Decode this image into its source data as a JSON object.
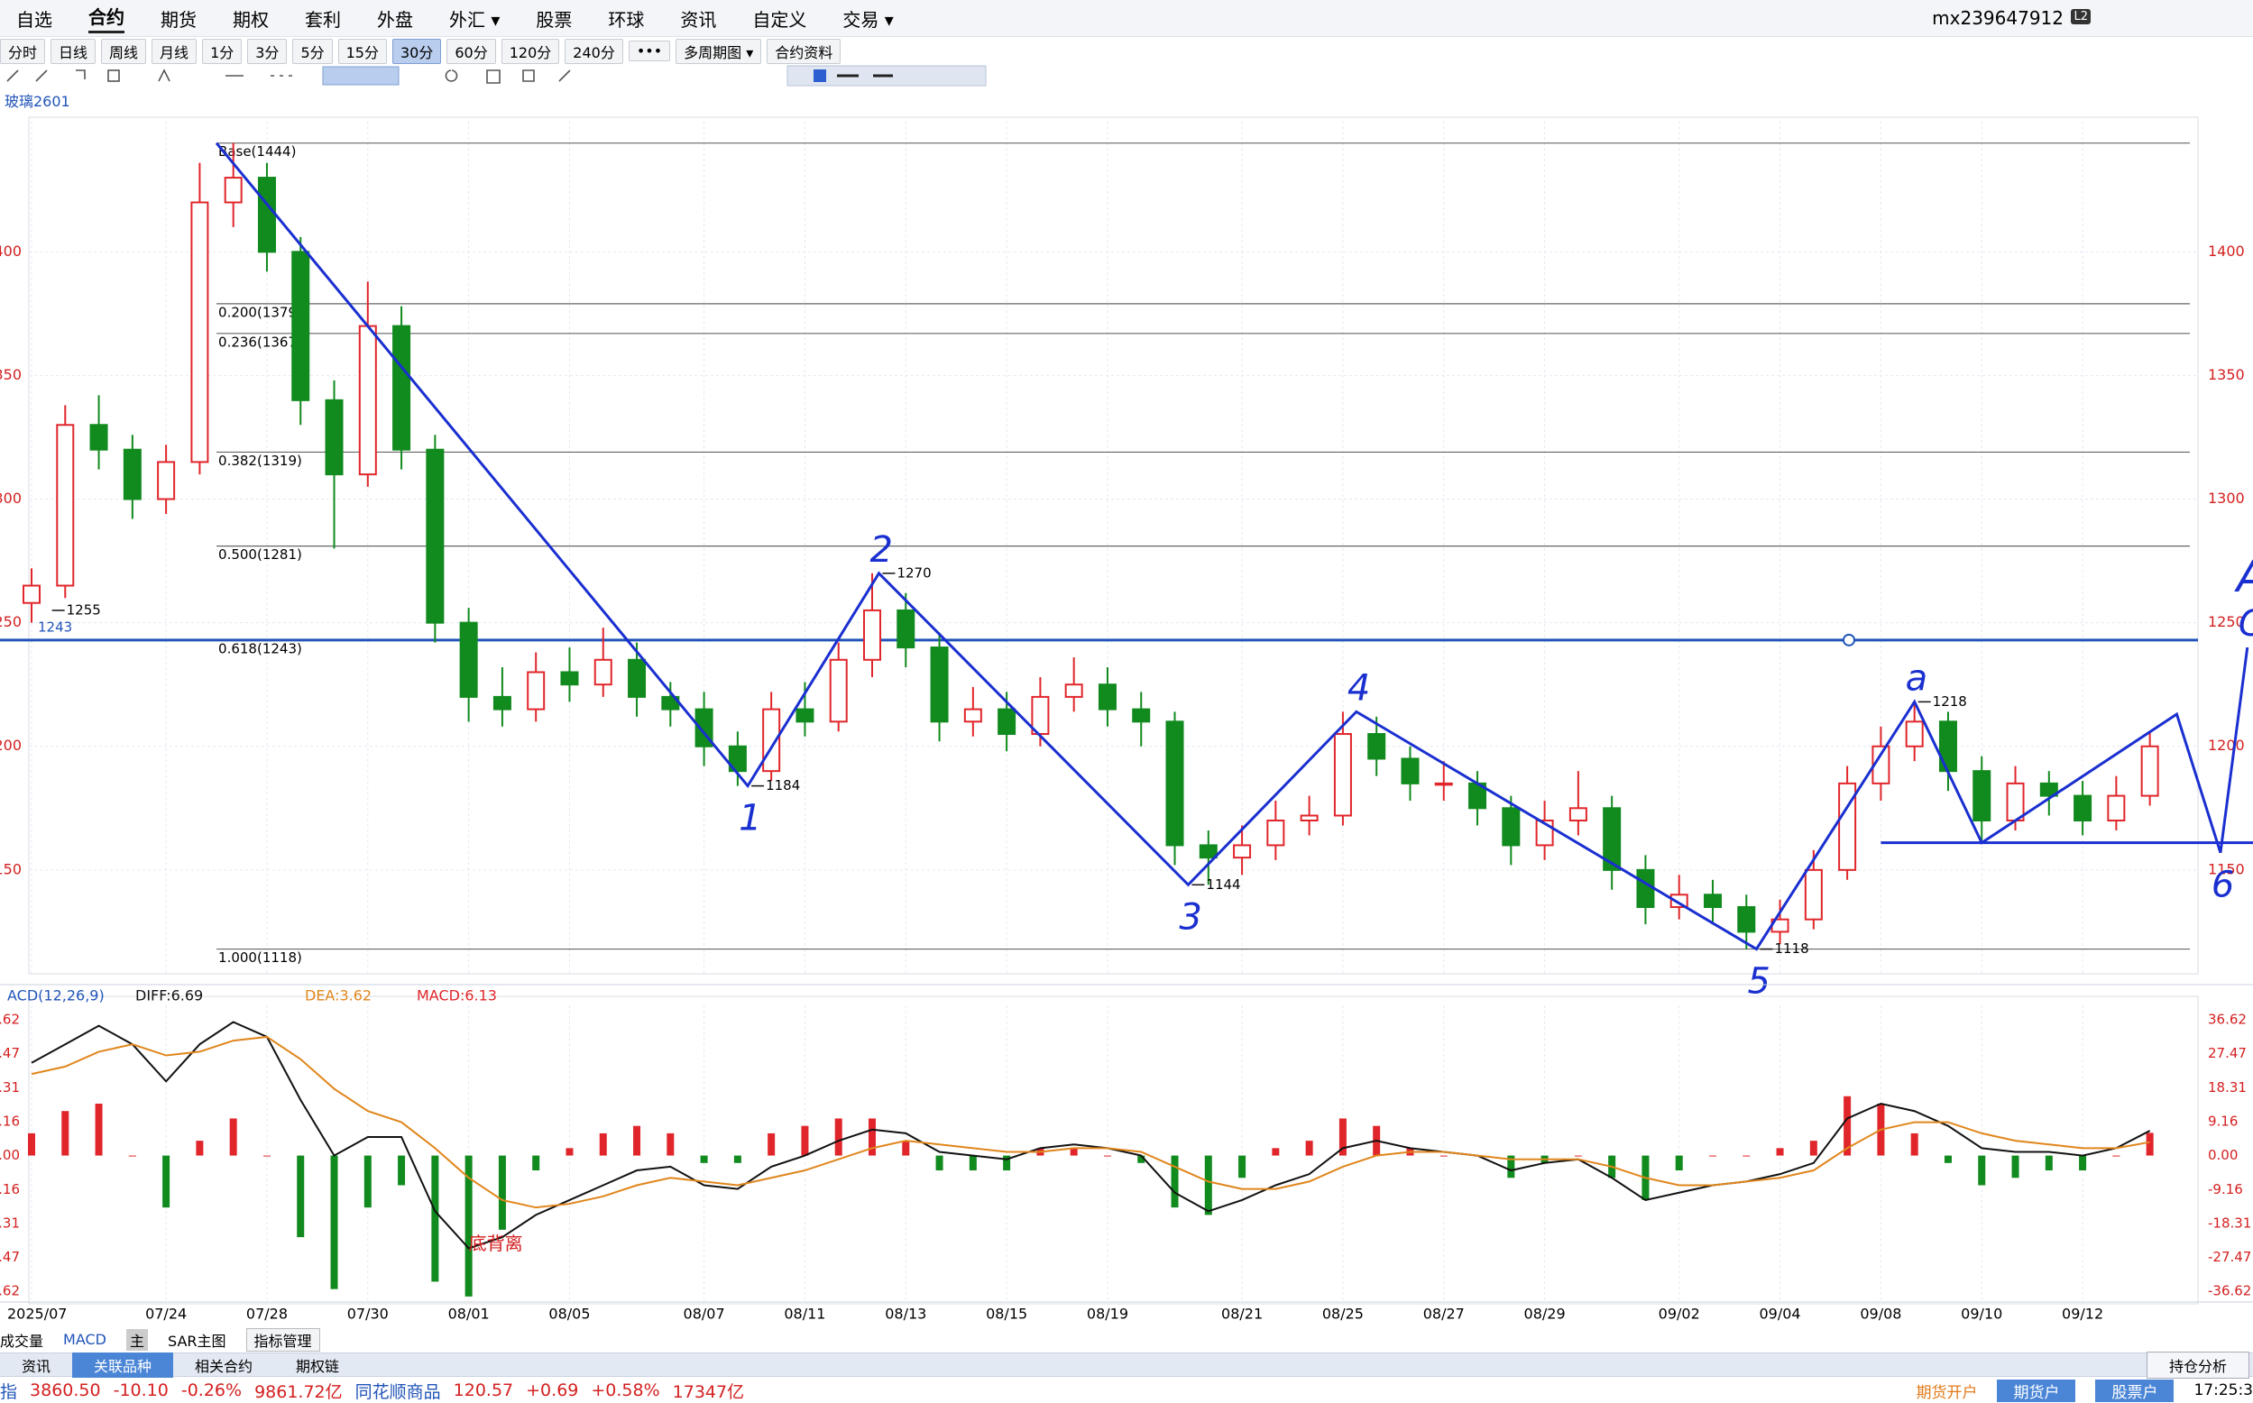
{
  "ui": {
    "menu": [
      "自选",
      "合约",
      "期货",
      "期权",
      "套利",
      "外盘",
      "外汇 ▾",
      "股票",
      "环球",
      "资讯",
      "自定义",
      "交易 ▾"
    ],
    "menu_active": 1,
    "user": "mx239647912",
    "badge": "L2",
    "periods": [
      "分时",
      "日线",
      "周线",
      "月线",
      "1分",
      "3分",
      "5分",
      "15分",
      "30分",
      "60分",
      "120分",
      "240分",
      "•••",
      "多周期图 ▾",
      "合约资料"
    ],
    "period_active": 8,
    "indicator_bar": [
      "成交量",
      "MACD",
      "主",
      "SAR主图",
      "指标管理"
    ],
    "tabs": [
      "资讯",
      "关联品种",
      "相关合约",
      "期权链"
    ],
    "tab_active": 1,
    "tab_right": "持仓分析",
    "status": [
      "指",
      "3860.50",
      "-10.10",
      "-0.26%",
      "9861.72亿",
      "同花顺商品",
      "120.57",
      "+0.69",
      "+0.58%",
      "17347亿"
    ],
    "status_right": [
      "期货开户",
      "期货户",
      "股票户",
      "17:25:3"
    ]
  },
  "chart_data": [
    {
      "type": "candlestick",
      "title": "玻璃2601",
      "categories": [
        "2025/07",
        null,
        null,
        null,
        "07/24",
        null,
        null,
        "07/28",
        null,
        null,
        "07/30",
        null,
        null,
        "08/01",
        null,
        null,
        "08/05",
        null,
        null,
        null,
        "08/07",
        null,
        null,
        "08/11",
        null,
        null,
        "08/13",
        null,
        null,
        "08/15",
        null,
        null,
        "08/19",
        null,
        null,
        null,
        "08/21",
        null,
        null,
        "08/25",
        null,
        null,
        "08/27",
        null,
        null,
        "08/29",
        null,
        null,
        null,
        "09/02",
        null,
        null,
        "09/04",
        null,
        null,
        "09/08",
        null,
        null,
        "09/10",
        null,
        null,
        "09/12",
        null,
        null
      ],
      "open": [
        1258,
        1265,
        1330,
        1320,
        1300,
        1315,
        1420,
        1430,
        1400,
        1340,
        1310,
        1370,
        1320,
        1250,
        1220,
        1215,
        1230,
        1225,
        1235,
        1220,
        1215,
        1200,
        1190,
        1215,
        1210,
        1235,
        1255,
        1240,
        1210,
        1215,
        1205,
        1220,
        1225,
        1215,
        1210,
        1160,
        1155,
        1160,
        1170,
        1172,
        1205,
        1195,
        1185,
        1185,
        1175,
        1160,
        1170,
        1175,
        1150,
        1135,
        1140,
        1135,
        1125,
        1130,
        1150,
        1185,
        1200,
        1210,
        1190,
        1170,
        1185,
        1180,
        1170,
        1180
      ],
      "high": [
        1272,
        1338,
        1342,
        1326,
        1322,
        1436,
        1444,
        1436,
        1406,
        1348,
        1388,
        1378,
        1326,
        1256,
        1232,
        1238,
        1240,
        1248,
        1242,
        1226,
        1222,
        1206,
        1222,
        1226,
        1242,
        1270,
        1262,
        1246,
        1224,
        1222,
        1228,
        1236,
        1232,
        1222,
        1214,
        1166,
        1168,
        1178,
        1180,
        1214,
        1212,
        1200,
        1194,
        1190,
        1180,
        1178,
        1190,
        1180,
        1156,
        1148,
        1146,
        1140,
        1138,
        1158,
        1192,
        1208,
        1218,
        1214,
        1196,
        1192,
        1190,
        1186,
        1188,
        1206
      ],
      "low": [
        1250,
        1260,
        1312,
        1292,
        1294,
        1310,
        1410,
        1392,
        1330,
        1280,
        1305,
        1312,
        1242,
        1210,
        1208,
        1210,
        1218,
        1220,
        1212,
        1208,
        1192,
        1184,
        1186,
        1204,
        1206,
        1228,
        1232,
        1202,
        1204,
        1198,
        1200,
        1214,
        1208,
        1200,
        1152,
        1144,
        1148,
        1154,
        1164,
        1168,
        1188,
        1178,
        1178,
        1168,
        1152,
        1154,
        1164,
        1142,
        1128,
        1130,
        1128,
        1118,
        1120,
        1126,
        1146,
        1178,
        1194,
        1182,
        1162,
        1166,
        1172,
        1164,
        1166,
        1176
      ],
      "close": [
        1265,
        1330,
        1320,
        1300,
        1315,
        1420,
        1430,
        1400,
        1340,
        1310,
        1370,
        1320,
        1250,
        1220,
        1215,
        1230,
        1225,
        1235,
        1220,
        1215,
        1200,
        1190,
        1215,
        1210,
        1235,
        1255,
        1240,
        1210,
        1215,
        1205,
        1220,
        1225,
        1215,
        1210,
        1160,
        1155,
        1160,
        1170,
        1172,
        1205,
        1195,
        1185,
        1185,
        1175,
        1160,
        1170,
        1175,
        1150,
        1135,
        1140,
        1135,
        1125,
        1130,
        1150,
        1185,
        1200,
        1210,
        1190,
        1170,
        1185,
        1180,
        1170,
        1180,
        1200
      ],
      "up_color": "#e0262b",
      "down_color": "#118a1e",
      "ylim": [
        1108,
        1453
      ],
      "yticks": [
        1150,
        1200,
        1250,
        1300,
        1350,
        1400
      ],
      "grid": true,
      "fib": [
        {
          "label": "Base(1444)",
          "value": 1444
        },
        {
          "label": "0.200(1379)",
          "value": 1379
        },
        {
          "label": "0.236(1367)",
          "value": 1367
        },
        {
          "label": "0.382(1319)",
          "value": 1319
        },
        {
          "label": "0.500(1281)",
          "value": 1281
        },
        {
          "label": "0.618(1243)",
          "value": 1243
        },
        {
          "label": "1.000(1118)",
          "value": 1118
        }
      ],
      "hline": {
        "value": 1243,
        "label": "1243",
        "color": "#2154b8"
      },
      "zigzag": [
        {
          "x": 5.5,
          "y": 1444
        },
        {
          "x": 21.3,
          "y": 1184,
          "label": "1"
        },
        {
          "x": 25.2,
          "y": 1270,
          "label": "2"
        },
        {
          "x": 34.4,
          "y": 1144,
          "label": "3"
        },
        {
          "x": 39.4,
          "y": 1214,
          "label": "4"
        },
        {
          "x": 51.3,
          "y": 1118,
          "label": "5"
        },
        {
          "x": 56.0,
          "y": 1218,
          "label": "a"
        },
        {
          "x": 58.0,
          "y": 1161
        },
        {
          "x": 63.8,
          "y": 1213
        },
        {
          "x": 65.1,
          "y": 1157,
          "label": "6"
        },
        {
          "x": 65.9,
          "y": 1240,
          "label": "C"
        }
      ],
      "zigzag_color": "#1a2fd0",
      "base_line": {
        "from": 55.0,
        "to": 66.5,
        "value": 1161
      },
      "notes": [
        "A"
      ],
      "pivots": [
        {
          "x": 0.5,
          "y": 1255
        },
        {
          "x": 21.3,
          "y": 1184
        },
        {
          "x": 25.2,
          "y": 1270
        },
        {
          "x": 34.4,
          "y": 1144
        },
        {
          "x": 51.3,
          "y": 1118
        },
        {
          "x": 56.0,
          "y": 1218
        }
      ]
    },
    {
      "type": "macd",
      "legend": [
        "ACD(12,26,9)",
        "DIFF:6.69",
        "DEA:3.62",
        "MACD:6.13"
      ],
      "diff": [
        25,
        30,
        35,
        30,
        20,
        30,
        36,
        32,
        15,
        0,
        5,
        5,
        -15,
        -25,
        -22,
        -16,
        -12,
        -8,
        -4,
        -3,
        -8,
        -9,
        -3,
        0,
        4,
        7,
        6,
        1,
        0,
        -1,
        2,
        3,
        2,
        0,
        -10,
        -15,
        -12,
        -8,
        -5,
        2,
        4,
        2,
        1,
        0,
        -4,
        -2,
        -1,
        -6,
        -12,
        -10,
        -8,
        -7,
        -5,
        -2,
        10,
        14,
        12,
        8,
        2,
        1,
        1,
        0,
        2,
        6.69
      ],
      "dea": [
        22,
        24,
        28,
        30,
        27,
        28,
        31,
        32,
        26,
        18,
        12,
        9,
        2,
        -6,
        -12,
        -14,
        -13,
        -11,
        -8,
        -6,
        -7,
        -8,
        -6,
        -4,
        -1,
        2,
        4,
        3,
        2,
        1,
        1,
        2,
        2,
        1,
        -3,
        -7,
        -9,
        -9,
        -7,
        -3,
        0,
        1,
        1,
        0,
        -1,
        -1,
        -1,
        -3,
        -6,
        -8,
        -8,
        -7,
        -6,
        -4,
        2,
        7,
        9,
        9,
        6,
        4,
        3,
        2,
        2,
        3.62
      ],
      "macd": [
        6,
        12,
        14,
        0,
        -14,
        4,
        10,
        0,
        -22,
        -36,
        -14,
        -8,
        -34,
        -38,
        -20,
        -4,
        2,
        6,
        8,
        6,
        -2,
        -2,
        6,
        8,
        10,
        10,
        4,
        -4,
        -4,
        -4,
        2,
        2,
        0,
        -2,
        -14,
        -16,
        -6,
        2,
        4,
        10,
        8,
        2,
        0,
        0,
        -6,
        -2,
        0,
        -6,
        -12,
        -4,
        0,
        0,
        2,
        4,
        16,
        14,
        6,
        -2,
        -8,
        -6,
        -4,
        -4,
        0,
        6.13
      ],
      "colors": {
        "diff": "#111111",
        "dea": "#e0861c",
        "up": "#e0262b",
        "down": "#118a1e"
      },
      "ylim": [
        -39,
        40.5
      ],
      "yticks": [
        36.62,
        27.47,
        18.31,
        9.16,
        {
          "value": 0,
          "label": "0.00"
        },
        -9.16,
        -18.31,
        -27.47,
        -36.62
      ],
      "annotation": {
        "text": "底背离",
        "x": 13,
        "y": -24
      }
    }
  ]
}
